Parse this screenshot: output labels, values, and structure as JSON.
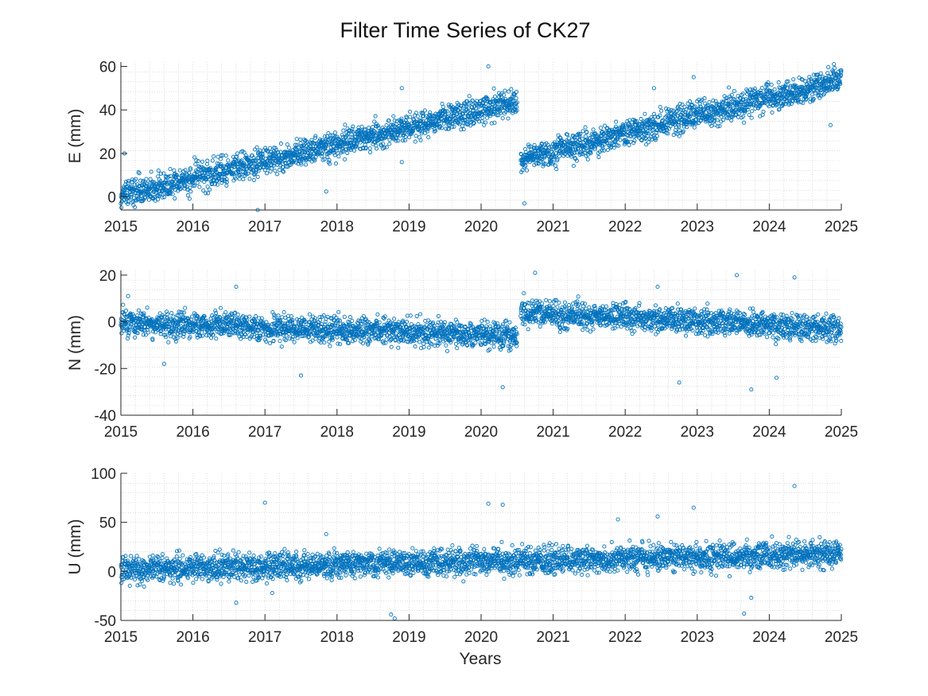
{
  "chart_data": {
    "type": "scatter",
    "title": "Filter Time Series of CK27",
    "xlabel": "Years",
    "xlim": [
      2015,
      2025
    ],
    "xticks": [
      "2015",
      "2016",
      "2017",
      "2018",
      "2019",
      "2020",
      "2021",
      "2022",
      "2023",
      "2024",
      "2025"
    ],
    "marker_color": "#0072BD",
    "grid": "minor dotted",
    "panels": [
      {
        "name": "E",
        "ylabel": "E (mm)",
        "ylim": [
          -6,
          62
        ],
        "yticks": [
          "0",
          "20",
          "40",
          "60"
        ],
        "trend_segments": [
          {
            "x_start": 2015.0,
            "x_end": 2020.5,
            "y_start": 0.5,
            "y_end": 44
          },
          {
            "x_start": 2020.55,
            "x_end": 2025.0,
            "y_start": 17,
            "y_end": 54
          }
        ],
        "outliers": [
          {
            "x": 2015.05,
            "y": 20
          },
          {
            "x": 2016.9,
            "y": -6
          },
          {
            "x": 2017.85,
            "y": 2.5
          },
          {
            "x": 2018.9,
            "y": 50
          },
          {
            "x": 2018.9,
            "y": 16
          },
          {
            "x": 2020.1,
            "y": 60
          },
          {
            "x": 2020.6,
            "y": -3
          },
          {
            "x": 2022.4,
            "y": 50
          },
          {
            "x": 2022.95,
            "y": 55
          },
          {
            "x": 2024.85,
            "y": 33
          }
        ]
      },
      {
        "name": "N",
        "ylabel": "N (mm)",
        "ylim": [
          -40,
          22
        ],
        "yticks": [
          "-40",
          "-20",
          "0",
          "20"
        ],
        "trend_segments": [
          {
            "x_start": 2015.0,
            "x_end": 2020.5,
            "y_start": -0.5,
            "y_end": -6
          },
          {
            "x_start": 2020.55,
            "x_end": 2025.0,
            "y_start": 4,
            "y_end": -3
          }
        ],
        "outliers": [
          {
            "x": 2015.1,
            "y": 11
          },
          {
            "x": 2015.6,
            "y": -18
          },
          {
            "x": 2016.6,
            "y": 15
          },
          {
            "x": 2017.5,
            "y": -23
          },
          {
            "x": 2020.3,
            "y": -28
          },
          {
            "x": 2020.75,
            "y": 21
          },
          {
            "x": 2022.45,
            "y": 15
          },
          {
            "x": 2022.75,
            "y": -26
          },
          {
            "x": 2023.55,
            "y": 20
          },
          {
            "x": 2023.75,
            "y": -29
          },
          {
            "x": 2024.1,
            "y": -24
          },
          {
            "x": 2024.35,
            "y": 19
          }
        ]
      },
      {
        "name": "U",
        "ylabel": "U (mm)",
        "ylim": [
          -50,
          100
        ],
        "yticks": [
          "-50",
          "0",
          "50",
          "100"
        ],
        "trend_segments": [
          {
            "x_start": 2015.0,
            "x_end": 2025.0,
            "y_start": 2,
            "y_end": 18
          }
        ],
        "outliers": [
          {
            "x": 2016.6,
            "y": -32
          },
          {
            "x": 2017.0,
            "y": 70
          },
          {
            "x": 2017.1,
            "y": -22
          },
          {
            "x": 2017.85,
            "y": 38
          },
          {
            "x": 2018.75,
            "y": -44
          },
          {
            "x": 2018.8,
            "y": -48
          },
          {
            "x": 2020.1,
            "y": 69
          },
          {
            "x": 2020.3,
            "y": 68
          },
          {
            "x": 2021.9,
            "y": 53
          },
          {
            "x": 2022.45,
            "y": 56
          },
          {
            "x": 2022.95,
            "y": 65
          },
          {
            "x": 2023.65,
            "y": -43
          },
          {
            "x": 2023.75,
            "y": -27
          },
          {
            "x": 2024.35,
            "y": 87
          }
        ]
      }
    ]
  }
}
